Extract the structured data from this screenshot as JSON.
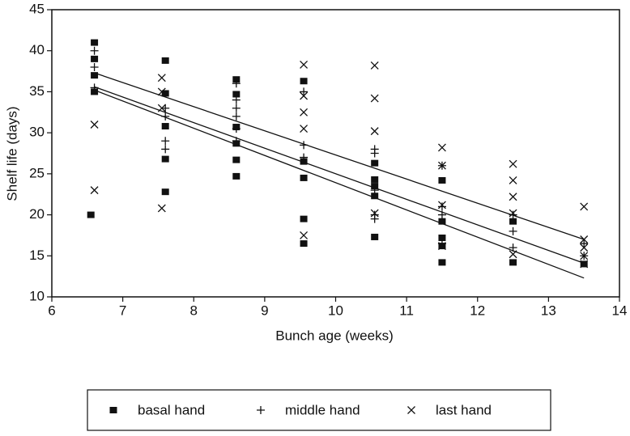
{
  "chart_data": {
    "type": "scatter",
    "xlabel": "Bunch age (weeks)",
    "ylabel": "Shelf life (days)",
    "xlim": [
      6,
      14
    ],
    "xticks": [
      6,
      7,
      8,
      9,
      10,
      11,
      12,
      13,
      14
    ],
    "ylim": [
      10,
      45
    ],
    "yticks": [
      10,
      15,
      20,
      25,
      30,
      35,
      40,
      45
    ],
    "legend": "bottom",
    "series": [
      {
        "name": "basal hand",
        "color": "#111111",
        "marker": "square",
        "x": [
          6.6,
          6.6,
          6.6,
          6.6,
          6.55,
          7.6,
          7.6,
          7.6,
          7.6,
          7.6,
          8.6,
          8.6,
          8.6,
          8.6,
          8.6,
          8.6,
          9.55,
          9.55,
          9.55,
          9.55,
          9.55,
          10.55,
          10.55,
          10.55,
          10.55,
          10.55,
          11.5,
          11.5,
          11.5,
          11.5,
          11.5,
          12.5,
          12.5,
          13.5
        ],
        "values": [
          41,
          39,
          37,
          35,
          20,
          38.8,
          34.8,
          30.8,
          26.8,
          22.8,
          36.5,
          34.7,
          30.7,
          28.7,
          26.7,
          24.7,
          36.3,
          26.5,
          24.5,
          19.5,
          16.5,
          26.3,
          24.3,
          23.5,
          22.3,
          17.3,
          24.2,
          19.2,
          17.2,
          16.2,
          14.2,
          19.2,
          14.2,
          14
        ]
      },
      {
        "name": "middle hand",
        "color": "#111111",
        "marker": "plus",
        "x": [
          6.6,
          6.6,
          6.6,
          7.6,
          7.6,
          7.6,
          7.6,
          8.6,
          8.6,
          8.6,
          8.6,
          8.6,
          8.6,
          9.55,
          9.55,
          9.55,
          10.55,
          10.55,
          10.55,
          10.55,
          10.55,
          11.5,
          11.5,
          11.5,
          11.5,
          12.5,
          12.5,
          12.5,
          13.5,
          13.5
        ],
        "values": [
          40,
          38,
          35.5,
          33,
          32,
          29,
          28,
          36,
          34,
          33,
          32,
          30.5,
          29,
          35,
          28.5,
          27,
          28,
          27.5,
          23,
          20,
          19.5,
          26,
          21,
          20,
          16.5,
          20,
          18,
          16,
          16.5,
          15
        ]
      },
      {
        "name": "last hand",
        "color": "#111111",
        "marker": "x",
        "x": [
          6.6,
          6.6,
          7.55,
          7.55,
          7.55,
          7.55,
          9.55,
          9.55,
          9.55,
          9.55,
          9.55,
          10.55,
          10.55,
          10.55,
          10.55,
          11.5,
          11.5,
          11.5,
          11.5,
          12.5,
          12.5,
          12.5,
          12.5,
          12.5,
          13.5,
          13.5,
          13.5,
          13.5,
          13.5
        ],
        "values": [
          31,
          23,
          36.7,
          35,
          33,
          20.8,
          38.3,
          34.5,
          32.5,
          30.5,
          17.5,
          38.2,
          34.2,
          30.2,
          20.2,
          28.2,
          26,
          21.2,
          16.2,
          26.2,
          24.2,
          22.2,
          20.2,
          15.2,
          21,
          17,
          16,
          15,
          14
        ]
      }
    ],
    "trend_lines": [
      {
        "x": [
          6.6,
          13.5
        ],
        "values": [
          37.3,
          17
        ]
      },
      {
        "x": [
          6.6,
          13.5
        ],
        "values": [
          35.6,
          14.1
        ]
      },
      {
        "x": [
          6.6,
          13.5
        ],
        "values": [
          35.2,
          12.3
        ]
      }
    ]
  }
}
